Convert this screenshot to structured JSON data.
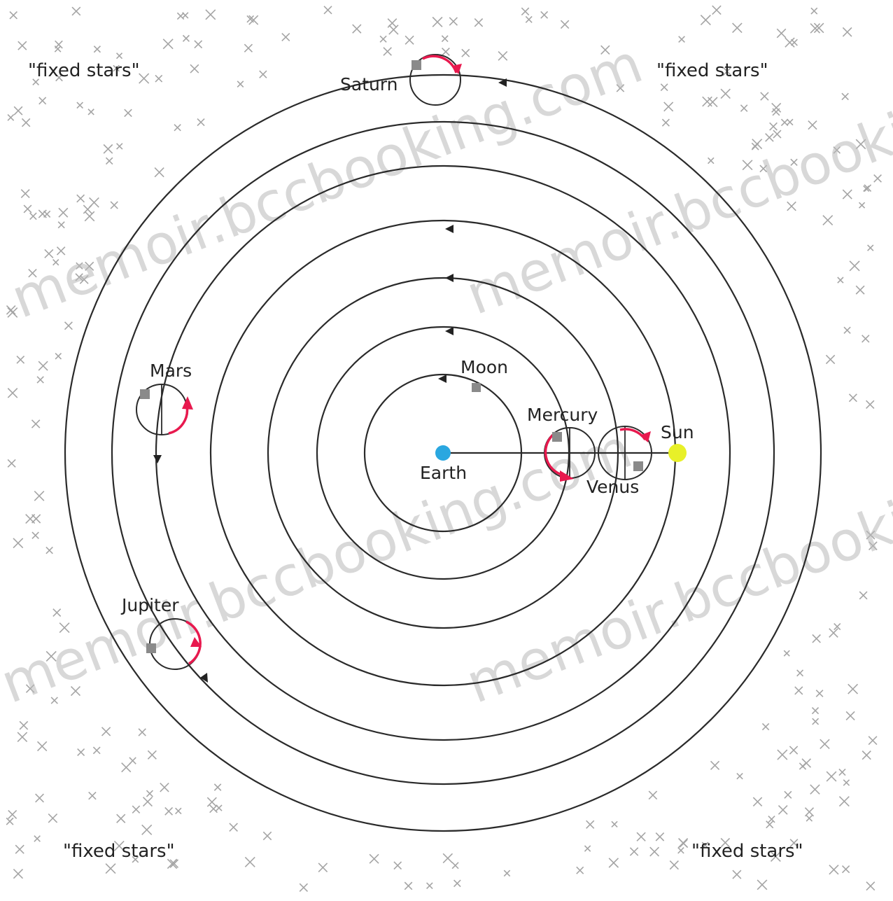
{
  "labels": {
    "saturn": "Saturn",
    "mars": "Mars",
    "jupiter": "Jupiter",
    "moon": "Moon",
    "mercury": "Mercury",
    "venus": "Venus",
    "sun": "Sun",
    "earth": "Earth"
  },
  "fixed_stars": {
    "top_left": "\"fixed stars\"",
    "top_right": "\"fixed stars\"",
    "bottom_left": "\"fixed stars\"",
    "bottom_right": "\"fixed stars\""
  },
  "watermark": "memoir.bccbooking.com",
  "colors": {
    "earth": "#2aa7e0",
    "sun": "#e8f028",
    "epicycle_arrow": "#e8194e",
    "planet_marker": "#8a8a8a",
    "star": "#a5a5a5"
  }
}
